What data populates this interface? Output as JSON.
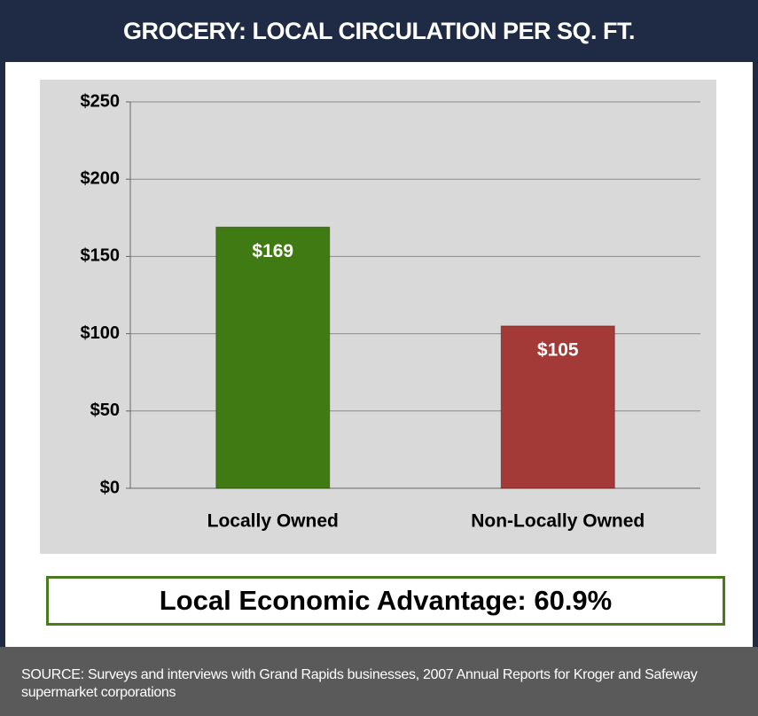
{
  "chart_data": {
    "type": "bar",
    "title": "GROCERY: LOCAL CIRCULATION PER SQ. FT.",
    "categories": [
      "Locally Owned",
      "Non-Locally Owned"
    ],
    "values": [
      169,
      105
    ],
    "value_labels": [
      "$169",
      "$105"
    ],
    "colors": [
      "#3f7a12",
      "#a33a38"
    ],
    "ylim": [
      0,
      250
    ],
    "yticks": [
      {
        "value": 0,
        "label": "$0"
      },
      {
        "value": 50,
        "label": "$50"
      },
      {
        "value": 100,
        "label": "$100"
      },
      {
        "value": 150,
        "label": "$150"
      },
      {
        "value": 200,
        "label": "$200"
      },
      {
        "value": 250,
        "label": "$250"
      }
    ],
    "grid": true,
    "annotation": "Local Economic Advantage: 60.9%",
    "source": "SOURCE: Surveys and interviews with Grand Rapids businesses, 2007 Annual Reports for Kroger and Safeway supermarket corporations"
  }
}
